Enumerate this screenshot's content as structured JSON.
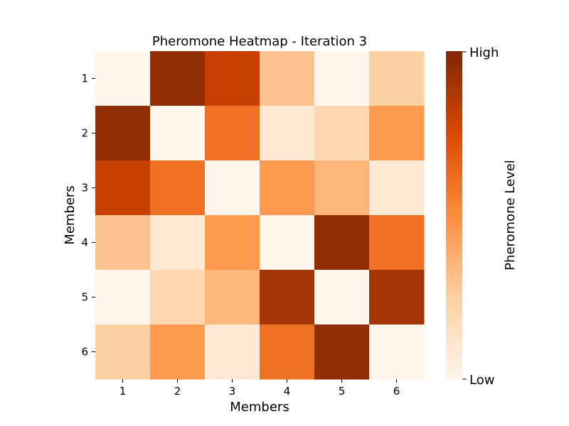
{
  "chart_data": {
    "type": "heatmap",
    "title": "Pheromone Heatmap - Iteration 3",
    "xlabel": "Members",
    "ylabel": "Members",
    "x_categories": [
      "1",
      "2",
      "3",
      "4",
      "5",
      "6"
    ],
    "y_categories": [
      "1",
      "2",
      "3",
      "4",
      "5",
      "6"
    ],
    "values": [
      [
        0.0,
        0.95,
        0.8,
        0.3,
        0.0,
        0.25
      ],
      [
        0.95,
        0.0,
        0.6,
        0.08,
        0.2,
        0.45
      ],
      [
        0.8,
        0.6,
        0.0,
        0.45,
        0.35,
        0.08
      ],
      [
        0.3,
        0.08,
        0.45,
        0.0,
        0.95,
        0.6
      ],
      [
        0.0,
        0.2,
        0.35,
        0.9,
        0.0,
        0.9
      ],
      [
        0.25,
        0.45,
        0.08,
        0.6,
        0.95,
        0.0
      ]
    ],
    "colormap": "Oranges",
    "colorbar": {
      "label": "Pheromone Level",
      "tick_high": "High",
      "tick_low": "Low"
    },
    "grid": false
  }
}
